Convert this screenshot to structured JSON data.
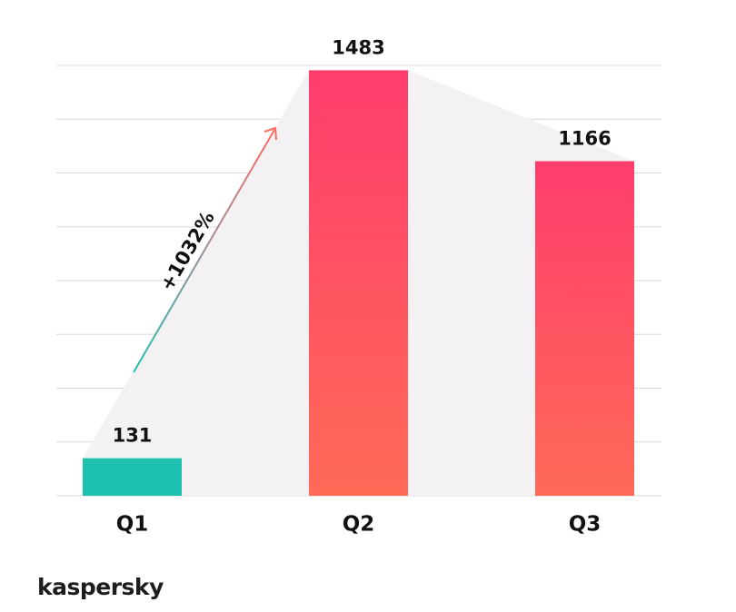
{
  "chart_data": {
    "type": "bar",
    "categories": [
      "Q1",
      "Q2",
      "Q3"
    ],
    "values": [
      131,
      1483,
      1166
    ],
    "colors": [
      [
        "#1ec1ad",
        "#1ec1ad"
      ],
      [
        "#ff3d6d",
        "#ff6a57"
      ],
      [
        "#ff3d6d",
        "#ff6a57"
      ]
    ],
    "ylim": [
      0,
      1500
    ],
    "yticks": [
      0,
      187.5,
      375,
      562.5,
      750,
      937.5,
      1125,
      1312.5,
      1500
    ],
    "grid": true,
    "annotation": "+1032%"
  },
  "brand": "kaspersky"
}
